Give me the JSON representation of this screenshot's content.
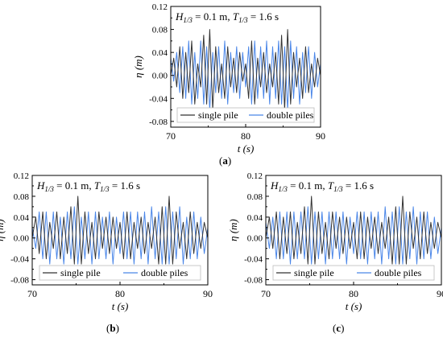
{
  "chart_data": [
    {
      "type": "line",
      "panel_label": "a",
      "annotation": "H1/3 = 0.1 m, T1/3 = 1.6 s",
      "annotation_parts": {
        "h_sym": "H",
        "h_sub": "1/3",
        "h_val": " = 0.1 m, ",
        "t_sym": "T",
        "t_sub": "1/3",
        "t_val": " = 1.6 s"
      },
      "xlabel": "t (s)",
      "ylabel": "η (m)",
      "xlim": [
        70,
        90
      ],
      "ylim": [
        -0.09,
        0.12
      ],
      "xticks": [
        70,
        80,
        90
      ],
      "yticks": [
        -0.08,
        -0.04,
        0.0,
        0.04,
        0.08,
        0.12
      ],
      "grid": false,
      "legend_position": "bottom",
      "series": [
        {
          "name": "single pile",
          "color": "#333333",
          "x": [
            70,
            70.4,
            70.8,
            71.2,
            71.6,
            72,
            72.4,
            72.8,
            73.2,
            73.6,
            74,
            74.4,
            74.8,
            75.2,
            75.6,
            76,
            76.4,
            76.8,
            77.2,
            77.6,
            78,
            78.4,
            78.8,
            79.2,
            79.6,
            80,
            80.4,
            80.8,
            81.2,
            81.6,
            82,
            82.4,
            82.8,
            83.2,
            83.6,
            84,
            84.4,
            84.8,
            85.2,
            85.6,
            86,
            86.4,
            86.8,
            87.2,
            87.6,
            88,
            88.4,
            88.8,
            89.2,
            89.6,
            90
          ],
          "y": [
            0.0,
            0.03,
            -0.02,
            0.05,
            -0.04,
            0.04,
            -0.03,
            0.06,
            -0.05,
            0.02,
            -0.02,
            0.07,
            -0.05,
            0.08,
            -0.06,
            0.05,
            -0.03,
            0.02,
            -0.04,
            0.05,
            -0.02,
            0.03,
            -0.03,
            0.04,
            -0.01,
            0.02,
            -0.04,
            0.06,
            -0.05,
            0.03,
            -0.02,
            0.04,
            -0.03,
            0.02,
            -0.02,
            0.04,
            -0.05,
            0.07,
            -0.06,
            0.08,
            -0.05,
            0.04,
            -0.02,
            0.03,
            -0.04,
            0.05,
            -0.03,
            0.02,
            -0.02,
            0.03,
            0.0
          ]
        },
        {
          "name": "double piles",
          "color": "#4a86e8",
          "x": [
            70,
            70.4,
            70.8,
            71.2,
            71.6,
            72,
            72.4,
            72.8,
            73.2,
            73.6,
            74,
            74.4,
            74.8,
            75.2,
            75.6,
            76,
            76.4,
            76.8,
            77.2,
            77.6,
            78,
            78.4,
            78.8,
            79.2,
            79.6,
            80,
            80.4,
            80.8,
            81.2,
            81.6,
            82,
            82.4,
            82.8,
            83.2,
            83.6,
            84,
            84.4,
            84.8,
            85.2,
            85.6,
            86,
            86.4,
            86.8,
            87.2,
            87.6,
            88,
            88.4,
            88.8,
            89.2,
            89.6,
            90
          ],
          "y": [
            0.03,
            -0.01,
            0.04,
            -0.03,
            0.05,
            -0.04,
            0.06,
            -0.05,
            0.04,
            -0.04,
            0.06,
            -0.05,
            0.05,
            -0.06,
            0.04,
            -0.03,
            0.05,
            -0.04,
            0.06,
            -0.05,
            0.04,
            -0.03,
            0.05,
            -0.04,
            0.04,
            -0.02,
            0.05,
            -0.05,
            0.06,
            -0.04,
            0.05,
            -0.04,
            0.06,
            -0.05,
            0.05,
            -0.04,
            0.06,
            -0.05,
            0.05,
            -0.06,
            0.06,
            -0.04,
            0.05,
            -0.05,
            0.04,
            -0.03,
            0.05,
            -0.04,
            0.04,
            -0.02,
            0.02
          ]
        }
      ]
    },
    {
      "type": "line",
      "panel_label": "b",
      "annotation": "H1/3 = 0.1 m, T1/3 = 1.6 s",
      "annotation_parts": {
        "h_sym": "H",
        "h_sub": "1/3",
        "h_val": " = 0.1 m, ",
        "t_sym": "T",
        "t_sub": "1/3",
        "t_val": " = 1.6 s"
      },
      "xlabel": "t (s)",
      "ylabel": "η (m)",
      "xlim": [
        70,
        90
      ],
      "ylim": [
        -0.09,
        0.12
      ],
      "xticks": [
        70,
        80,
        90
      ],
      "yticks": [
        -0.08,
        -0.04,
        0.0,
        0.04,
        0.08,
        0.12
      ],
      "grid": false,
      "legend_position": "bottom",
      "series": [
        {
          "name": "single pile",
          "color": "#333333",
          "x": [
            70,
            70.4,
            70.8,
            71.2,
            71.6,
            72,
            72.4,
            72.8,
            73.2,
            73.6,
            74,
            74.4,
            74.8,
            75.2,
            75.6,
            76,
            76.4,
            76.8,
            77.2,
            77.6,
            78,
            78.4,
            78.8,
            79.2,
            79.6,
            80,
            80.4,
            80.8,
            81.2,
            81.6,
            82,
            82.4,
            82.8,
            83.2,
            83.6,
            84,
            84.4,
            84.8,
            85.2,
            85.6,
            86,
            86.4,
            86.8,
            87.2,
            87.6,
            88,
            88.4,
            88.8,
            89.2,
            89.6,
            90
          ],
          "y": [
            0.0,
            0.04,
            -0.03,
            0.05,
            -0.04,
            0.03,
            -0.02,
            0.05,
            -0.04,
            0.04,
            -0.03,
            0.06,
            -0.05,
            0.08,
            -0.05,
            0.05,
            -0.03,
            0.03,
            -0.04,
            0.05,
            -0.02,
            0.04,
            -0.03,
            0.04,
            -0.02,
            0.03,
            -0.04,
            0.05,
            -0.04,
            0.03,
            -0.02,
            0.04,
            -0.03,
            0.03,
            -0.02,
            0.04,
            -0.05,
            0.06,
            -0.05,
            0.08,
            -0.05,
            0.05,
            -0.02,
            0.03,
            -0.04,
            0.05,
            -0.03,
            0.03,
            -0.02,
            0.03,
            0.0
          ]
        },
        {
          "name": "double piles",
          "color": "#4a86e8",
          "x": [
            70,
            70.4,
            70.8,
            71.2,
            71.6,
            72,
            72.4,
            72.8,
            73.2,
            73.6,
            74,
            74.4,
            74.8,
            75.2,
            75.6,
            76,
            76.4,
            76.8,
            77.2,
            77.6,
            78,
            78.4,
            78.8,
            79.2,
            79.6,
            80,
            80.4,
            80.8,
            81.2,
            81.6,
            82,
            82.4,
            82.8,
            83.2,
            83.6,
            84,
            84.4,
            84.8,
            85.2,
            85.6,
            86,
            86.4,
            86.8,
            87.2,
            87.6,
            88,
            88.4,
            88.8,
            89.2,
            89.6,
            90
          ],
          "y": [
            0.02,
            -0.02,
            0.05,
            -0.04,
            0.05,
            -0.05,
            0.05,
            -0.04,
            0.04,
            -0.05,
            0.05,
            -0.04,
            0.06,
            -0.05,
            0.04,
            -0.04,
            0.05,
            -0.05,
            0.05,
            -0.04,
            0.04,
            -0.04,
            0.05,
            -0.05,
            0.04,
            -0.03,
            0.05,
            -0.04,
            0.05,
            -0.05,
            0.05,
            -0.04,
            0.05,
            -0.05,
            0.06,
            -0.04,
            0.05,
            -0.05,
            0.06,
            -0.05,
            0.05,
            -0.04,
            0.06,
            -0.05,
            0.04,
            -0.04,
            0.05,
            -0.04,
            0.04,
            -0.03,
            0.02
          ]
        }
      ]
    },
    {
      "type": "line",
      "panel_label": "c",
      "annotation": "H1/3 = 0.1 m, T1/3 = 1.6 s",
      "annotation_parts": {
        "h_sym": "H",
        "h_sub": "1/3",
        "h_val": " = 0.1 m, ",
        "t_sym": "T",
        "t_sub": "1/3",
        "t_val": " = 1.6 s"
      },
      "xlabel": "t (s)",
      "ylabel": "η (m)",
      "xlim": [
        70,
        90
      ],
      "ylim": [
        -0.09,
        0.12
      ],
      "xticks": [
        70,
        80,
        90
      ],
      "yticks": [
        -0.08,
        -0.04,
        0.0,
        0.04,
        0.08,
        0.12
      ],
      "grid": false,
      "legend_position": "bottom",
      "series": [
        {
          "name": "single pile",
          "color": "#333333",
          "x": [
            70,
            70.4,
            70.8,
            71.2,
            71.6,
            72,
            72.4,
            72.8,
            73.2,
            73.6,
            74,
            74.4,
            74.8,
            75.2,
            75.6,
            76,
            76.4,
            76.8,
            77.2,
            77.6,
            78,
            78.4,
            78.8,
            79.2,
            79.6,
            80,
            80.4,
            80.8,
            81.2,
            81.6,
            82,
            82.4,
            82.8,
            83.2,
            83.6,
            84,
            84.4,
            84.8,
            85.2,
            85.6,
            86,
            86.4,
            86.8,
            87.2,
            87.6,
            88,
            88.4,
            88.8,
            89.2,
            89.6,
            90
          ],
          "y": [
            0.0,
            0.04,
            -0.02,
            0.05,
            -0.04,
            0.04,
            -0.03,
            0.05,
            -0.04,
            0.03,
            -0.03,
            0.06,
            -0.05,
            0.08,
            -0.05,
            0.05,
            -0.03,
            0.03,
            -0.04,
            0.05,
            -0.02,
            0.04,
            -0.03,
            0.04,
            -0.02,
            0.03,
            -0.04,
            0.05,
            -0.04,
            0.04,
            -0.02,
            0.04,
            -0.03,
            0.03,
            -0.02,
            0.04,
            -0.05,
            0.06,
            -0.05,
            0.08,
            -0.05,
            0.05,
            -0.02,
            0.04,
            -0.04,
            0.05,
            -0.03,
            0.03,
            -0.02,
            0.03,
            0.0
          ]
        },
        {
          "name": "double piles",
          "color": "#4a86e8",
          "x": [
            70,
            70.4,
            70.8,
            71.2,
            71.6,
            72,
            72.4,
            72.8,
            73.2,
            73.6,
            74,
            74.4,
            74.8,
            75.2,
            75.6,
            76,
            76.4,
            76.8,
            77.2,
            77.6,
            78,
            78.4,
            78.8,
            79.2,
            79.6,
            80,
            80.4,
            80.8,
            81.2,
            81.6,
            82,
            82.4,
            82.8,
            83.2,
            83.6,
            84,
            84.4,
            84.8,
            85.2,
            85.6,
            86,
            86.4,
            86.8,
            87.2,
            87.6,
            88,
            88.4,
            88.8,
            89.2,
            89.6,
            90
          ],
          "y": [
            0.03,
            -0.02,
            0.04,
            -0.04,
            0.05,
            -0.04,
            0.05,
            -0.05,
            0.05,
            -0.04,
            0.05,
            -0.04,
            0.06,
            -0.05,
            0.05,
            -0.04,
            0.05,
            -0.05,
            0.05,
            -0.04,
            0.05,
            -0.04,
            0.05,
            -0.05,
            0.04,
            -0.03,
            0.05,
            -0.04,
            0.05,
            -0.05,
            0.05,
            -0.04,
            0.05,
            -0.05,
            0.06,
            -0.04,
            0.05,
            -0.05,
            0.06,
            -0.05,
            0.05,
            -0.04,
            0.06,
            -0.05,
            0.05,
            -0.04,
            0.05,
            -0.04,
            0.04,
            -0.03,
            0.02
          ]
        }
      ]
    }
  ]
}
